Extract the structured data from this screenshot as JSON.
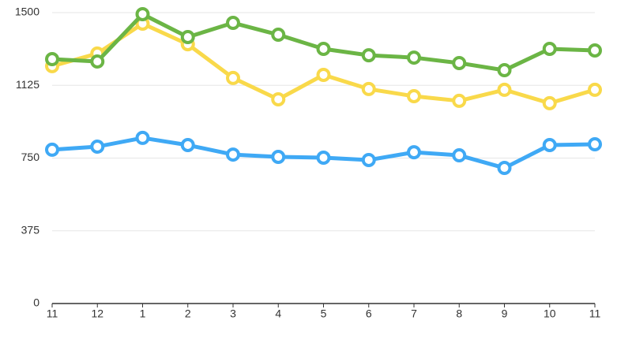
{
  "chart_data": {
    "type": "line",
    "categories": [
      "11",
      "12",
      "1",
      "2",
      "3",
      "4",
      "5",
      "6",
      "7",
      "8",
      "9",
      "10",
      "11"
    ],
    "series": [
      {
        "color": "#3fa9f5",
        "values": [
          793,
          809,
          854,
          817,
          768,
          756,
          752,
          740,
          780,
          764,
          699,
          817,
          821
        ]
      },
      {
        "color": "#f9d94a",
        "values": [
          1224,
          1289,
          1443,
          1337,
          1163,
          1053,
          1179,
          1106,
          1069,
          1045,
          1102,
          1033,
          1102
        ]
      },
      {
        "color": "#6bb545",
        "values": [
          1260,
          1248,
          1492,
          1374,
          1447,
          1386,
          1313,
          1280,
          1268,
          1240,
          1203,
          1313,
          1305
        ]
      }
    ],
    "ylim": [
      0,
      1500
    ],
    "yticks": [
      0,
      375,
      750,
      1125,
      1500
    ],
    "grid": true
  }
}
